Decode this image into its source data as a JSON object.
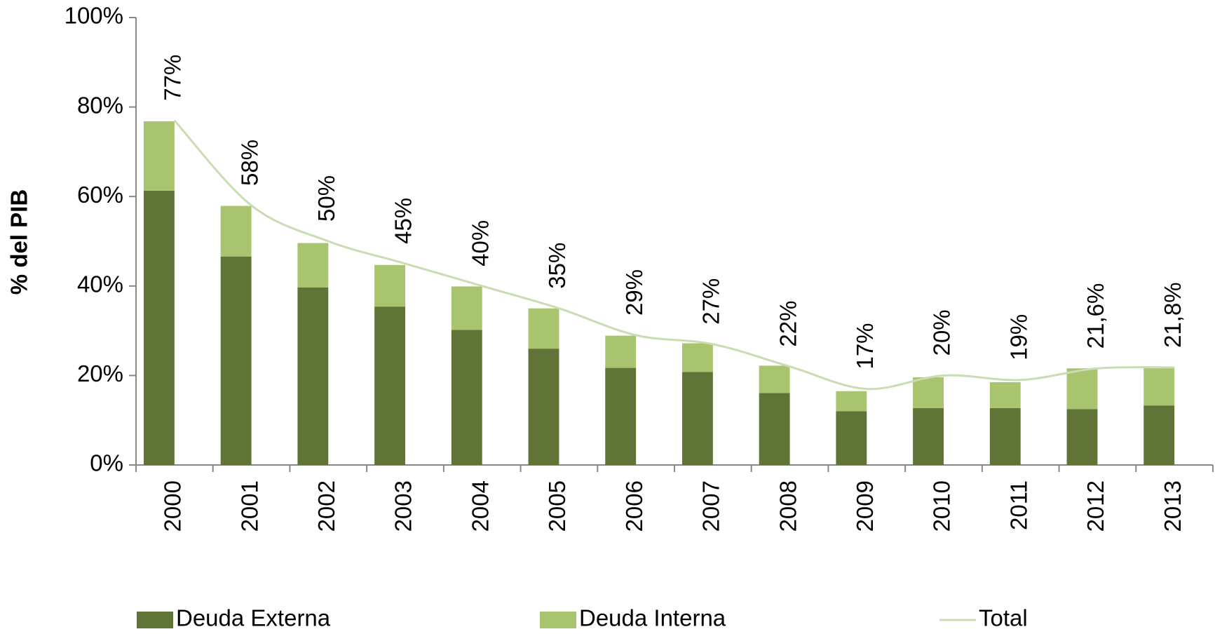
{
  "chart_data": {
    "type": "stacked-bar-line",
    "y_label": "% del PIB",
    "categories": [
      "2000",
      "2001",
      "2002",
      "2003",
      "2004",
      "2005",
      "2006",
      "2007",
      "2008",
      "2009",
      "2010",
      "2011",
      "2012",
      "2013"
    ],
    "series": [
      {
        "name": "Deuda Externa",
        "color": "#5f7436",
        "values": [
          61.3,
          46.6,
          39.7,
          35.4,
          30.2,
          26.0,
          21.7,
          20.8,
          16.1,
          12.0,
          12.7,
          12.7,
          12.5,
          13.3
        ]
      },
      {
        "name": "Deuda Interna",
        "color": "#a9c46f",
        "values": [
          15.5,
          11.3,
          9.9,
          9.3,
          9.7,
          9.0,
          7.2,
          6.4,
          6.1,
          4.5,
          6.9,
          5.8,
          9.1,
          8.5
        ]
      },
      {
        "name": "Total",
        "color": "#c9dcb3",
        "type": "line",
        "values": [
          77,
          58,
          50,
          45,
          40,
          35,
          29,
          27,
          22,
          17,
          20,
          19,
          21.6,
          21.8
        ],
        "value_labels": [
          "77%",
          "58%",
          "50%",
          "45%",
          "40%",
          "35%",
          "29%",
          "27%",
          "22%",
          "17%",
          "20%",
          "19%",
          "21,6%",
          "21,8%"
        ]
      }
    ],
    "ylim": [
      0,
      100
    ],
    "yticks": [
      {
        "value": 0,
        "label": "0%"
      },
      {
        "value": 20,
        "label": "20%"
      },
      {
        "value": 40,
        "label": "40%"
      },
      {
        "value": 60,
        "label": "60%"
      },
      {
        "value": 80,
        "label": "80%"
      },
      {
        "value": 100,
        "label": "100%"
      }
    ],
    "legend": "bottom"
  }
}
